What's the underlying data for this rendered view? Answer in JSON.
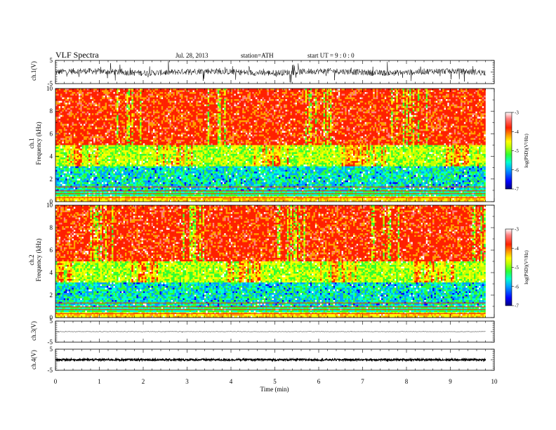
{
  "header": {
    "title": "VLF  Spectra",
    "date": "Jul.  28, 2013",
    "station": "station=ATH",
    "start": "start  UT  =   9  : 0  : 0"
  },
  "chart_data": {
    "type": "heatmap",
    "x_axis": {
      "label": "Time  (min)",
      "range": [
        0,
        10
      ],
      "ticks": [
        "0",
        "1",
        "2",
        "3",
        "4",
        "5",
        "6",
        "7",
        "8",
        "9",
        "10"
      ]
    },
    "data_end_min": 9.8,
    "waveform_panels": [
      {
        "label": "ch.1(V)",
        "range": [
          -5,
          5
        ],
        "ticks": [
          "5",
          "-5"
        ],
        "amplitude": "large noisy"
      },
      {
        "label": "ch.3(V)",
        "range": [
          -5,
          5
        ],
        "ticks": [
          "5",
          "-5"
        ],
        "amplitude": "small"
      },
      {
        "label": "ch.4(V)",
        "range": [
          -5,
          5
        ],
        "ticks": [
          "5",
          "-5"
        ],
        "amplitude": "dense band"
      }
    ],
    "spectrogram_panels": [
      {
        "channel_label": "ch.1",
        "ylabel": "Frequency  (kHz)",
        "yrange": [
          0,
          10
        ],
        "yticks": [
          "0",
          "2",
          "4",
          "6",
          "8",
          "10"
        ]
      },
      {
        "channel_label": "ch.2",
        "ylabel": "Frequency  (kHz)",
        "yrange": [
          0,
          10
        ],
        "yticks": [
          "0",
          "2",
          "4",
          "6",
          "8",
          "10"
        ]
      }
    ],
    "colorbar": {
      "label": "log(PSD)(V²/Hz)",
      "range": [
        -7,
        -3
      ],
      "ticks": [
        "-3",
        "-4",
        "-5",
        "-6",
        "-7"
      ],
      "colors": [
        "#000090",
        "#0000ff",
        "#00a0ff",
        "#00ffd0",
        "#30ff30",
        "#c0ff00",
        "#ffff00",
        "#ffa000",
        "#ff2000",
        "#ff8080",
        "#ffffff"
      ]
    }
  }
}
